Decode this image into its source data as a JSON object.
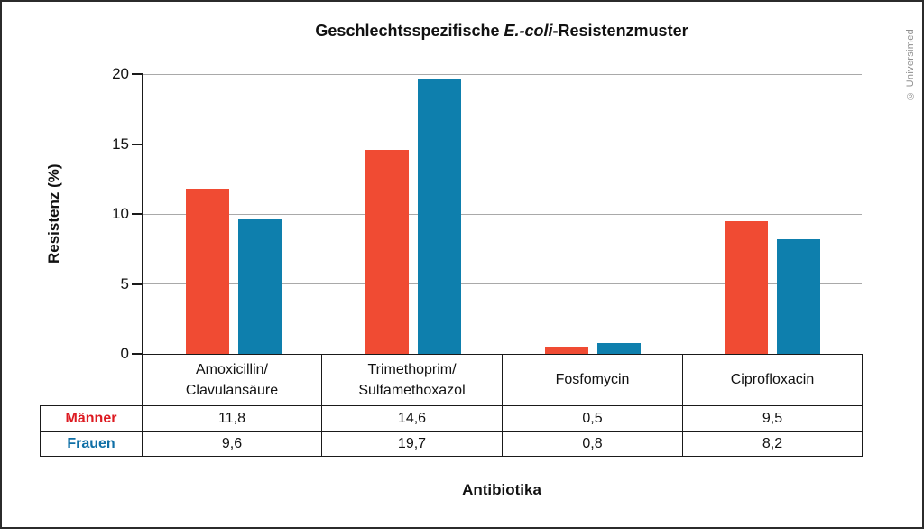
{
  "title": {
    "pre": "Geschlechtsspezifische ",
    "italic": "E.-coli",
    "post": "-Resistenzmuster"
  },
  "copyright": "© Universimed",
  "chart_data": {
    "type": "bar",
    "title": "Geschlechtsspezifische E.-coli-Resistenzmuster",
    "xlabel": "Antibiotika",
    "ylabel": "Resistenz (%)",
    "ylim": [
      0,
      20
    ],
    "yticks": [
      0,
      5,
      10,
      15,
      20
    ],
    "grid": true,
    "grid_color": "#a9a9a9",
    "axis_color": "#1a1a1a",
    "legend_position": "table-rows-left",
    "categories": [
      {
        "lines": [
          "Amoxicillin/",
          "Clavulansäure"
        ]
      },
      {
        "lines": [
          "Trimethoprim/",
          "Sulfamethoxazol"
        ]
      },
      {
        "lines": [
          "Fosfomycin"
        ]
      },
      {
        "lines": [
          "Ciprofloxacin"
        ]
      }
    ],
    "series": [
      {
        "name": "Männer",
        "color": "#f04b33",
        "label_color": "#dd1a21",
        "values": [
          11.8,
          14.6,
          0.5,
          9.5
        ],
        "display": [
          "11,8",
          "14,6",
          "0,5",
          "9,5"
        ]
      },
      {
        "name": "Frauen",
        "color": "#0e7fad",
        "label_color": "#0f6fa6",
        "values": [
          9.6,
          19.7,
          0.8,
          8.2
        ],
        "display": [
          "9,6",
          "19,7",
          "0,8",
          "8,2"
        ]
      }
    ]
  }
}
